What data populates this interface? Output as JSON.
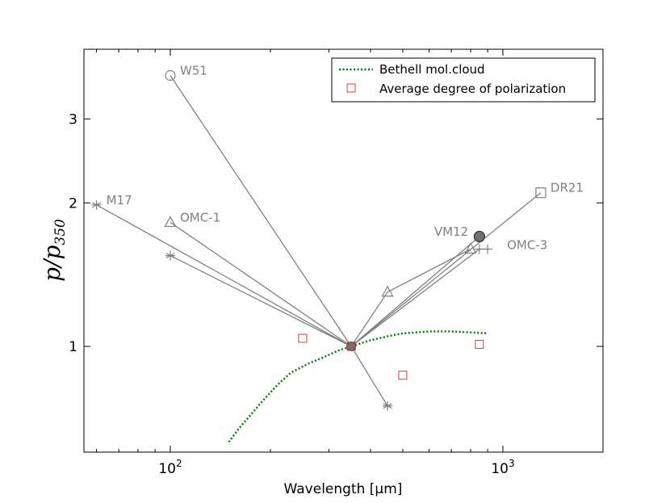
{
  "chart_data": {
    "type": "line",
    "title": "",
    "xlabel": "Wavelength [μm]",
    "ylabel": "p/p350",
    "ylabel_main": "p/p",
    "ylabel_sub": "350",
    "xscale": "log",
    "yscale": "log",
    "xlim": [
      55,
      2000
    ],
    "ylim": [
      0.6,
      4.2
    ],
    "x_ticks": [
      {
        "value": 100,
        "base": "10",
        "exp": "2"
      },
      {
        "value": 1000,
        "base": "10",
        "exp": "3"
      }
    ],
    "y_ticks": [
      {
        "value": 1,
        "label": "1"
      },
      {
        "value": 2,
        "label": "2"
      },
      {
        "value": 3,
        "label": "3"
      }
    ],
    "grid": false,
    "legend_position": "top-right",
    "legend": [
      {
        "label": "Bethell mol.cloud",
        "style": "dotted",
        "color": "#008000"
      },
      {
        "label": "Average degree of polarization",
        "style": "square",
        "color": "#e03c31"
      }
    ],
    "series": [
      {
        "name": "W51",
        "marker": "circle",
        "points": [
          [
            350,
            1.0
          ],
          [
            100,
            3.7
          ]
        ]
      },
      {
        "name": "M17",
        "marker": "star",
        "points": [
          [
            60,
            1.98
          ],
          [
            350,
            1.0
          ],
          [
            450,
            0.75
          ]
        ]
      },
      {
        "name": "OMC-1",
        "marker": "triangle",
        "points": [
          [
            100,
            1.82
          ],
          [
            350,
            1.0
          ],
          [
            450,
            1.3
          ],
          [
            800,
            1.6
          ]
        ]
      },
      {
        "name": "OMC-1 (100μm star)",
        "marker": "star",
        "points": [
          [
            100,
            1.55
          ],
          [
            350,
            1.0
          ]
        ]
      },
      {
        "name": "DR21",
        "marker": "square",
        "points": [
          [
            350,
            1.0
          ],
          [
            1300,
            2.1
          ]
        ]
      },
      {
        "name": "OMC-3",
        "marker": "plus",
        "points": [
          [
            350,
            1.0
          ],
          [
            850,
            1.6
          ],
          [
            900,
            1.6
          ]
        ]
      },
      {
        "name": "VM12",
        "marker": "filled-circle",
        "points": [
          [
            350,
            1.0
          ],
          [
            850,
            1.7
          ]
        ]
      }
    ],
    "annotations": [
      {
        "text": "W51",
        "x": 100,
        "y": 3.7
      },
      {
        "text": "M17",
        "x": 60,
        "y": 1.98
      },
      {
        "text": "OMC-1",
        "x": 100,
        "y": 1.82
      },
      {
        "text": "DR21",
        "x": 1300,
        "y": 2.1
      },
      {
        "text": "VM12",
        "x": 850,
        "y": 1.7
      },
      {
        "text": "OMC-3",
        "x": 900,
        "y": 1.6
      }
    ],
    "bethell": {
      "name": "Bethell mol.cloud",
      "x": [
        150,
        160,
        175,
        190,
        210,
        230,
        260,
        290,
        320,
        350,
        400,
        450,
        500,
        550,
        600,
        700,
        800,
        900
      ],
      "y": [
        0.63,
        0.67,
        0.72,
        0.77,
        0.83,
        0.88,
        0.92,
        0.95,
        0.98,
        1.0,
        1.03,
        1.05,
        1.065,
        1.07,
        1.075,
        1.075,
        1.07,
        1.065
      ]
    },
    "average": {
      "name": "Average degree of polarization",
      "points": [
        [
          250,
          1.04
        ],
        [
          500,
          0.87
        ],
        [
          850,
          1.01
        ]
      ]
    },
    "reference_point": {
      "x": 350,
      "y": 1.0
    }
  },
  "colors": {
    "line": "#808080",
    "bethell": "#008000",
    "average": "#e03c31",
    "vm12_fill": "#707070",
    "ref_fill": "#707070"
  }
}
